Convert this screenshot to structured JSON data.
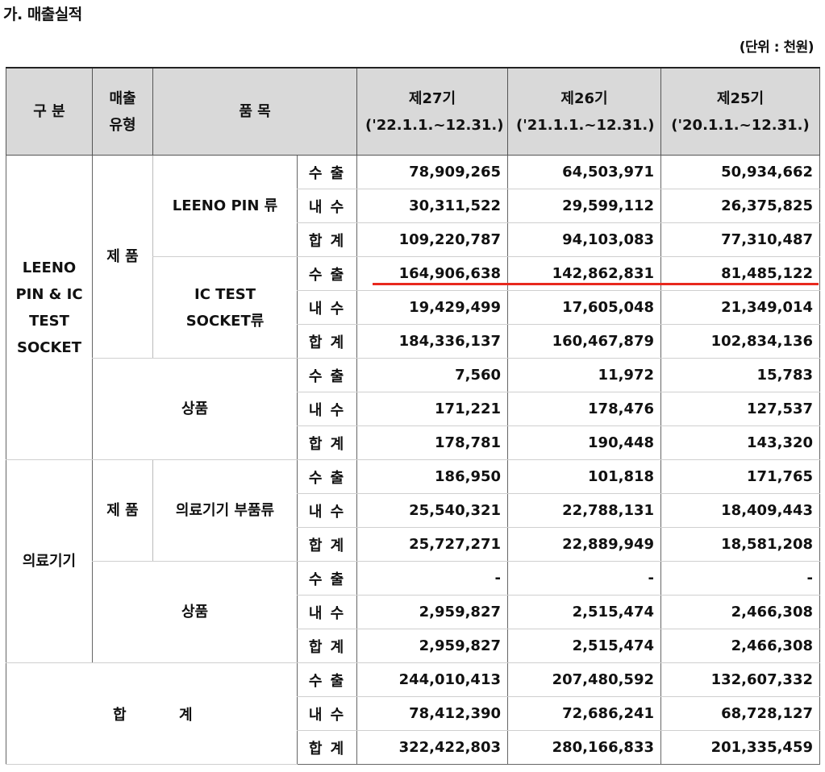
{
  "title": "가. 매출실적",
  "unit": "(단위 : 천원)",
  "headers": {
    "category": "구 분",
    "sales_type": "매출 유형",
    "item": "품 목",
    "fy27": "제27기 ('22.1.1.~12.31.)",
    "fy26": "제26기 ('21.1.1.~12.31.)",
    "fy25": "제25기 ('20.1.1.~12.31.)"
  },
  "groups": {
    "socket": "LEENO PIN & IC TEST SOCKET",
    "medical": "의료기기",
    "total": [
      "합",
      "계"
    ]
  },
  "types": {
    "product": "제 품",
    "goods": "상품"
  },
  "items": {
    "leeno_pin": "LEENO PIN 류",
    "ic_socket": "IC TEST SOCKET류",
    "medical_parts": "의료기기 부품류"
  },
  "sub": {
    "export": "수 출",
    "domestic": "내 수",
    "sum": "합 계"
  },
  "rows": {
    "pin_export": [
      "78,909,265",
      "64,503,971",
      "50,934,662"
    ],
    "pin_domestic": [
      "30,311,522",
      "29,599,112",
      "26,375,825"
    ],
    "pin_sum": [
      "109,220,787",
      "94,103,083",
      "77,310,487"
    ],
    "ic_export": [
      "164,906,638",
      "142,862,831",
      "81,485,122"
    ],
    "ic_domestic": [
      "19,429,499",
      "17,605,048",
      "21,349,014"
    ],
    "ic_sum": [
      "184,336,137",
      "160,467,879",
      "102,834,136"
    ],
    "sg_export": [
      "7,560",
      "11,972",
      "15,783"
    ],
    "sg_domestic": [
      "171,221",
      "178,476",
      "127,537"
    ],
    "sg_sum": [
      "178,781",
      "190,448",
      "143,320"
    ],
    "mp_export": [
      "186,950",
      "101,818",
      "171,765"
    ],
    "mp_domestic": [
      "25,540,321",
      "22,788,131",
      "18,409,443"
    ],
    "mp_sum": [
      "25,727,271",
      "22,889,949",
      "18,581,208"
    ],
    "mg_export": [
      "-",
      "-",
      "-"
    ],
    "mg_domestic": [
      "2,959,827",
      "2,515,474",
      "2,466,308"
    ],
    "mg_sum": [
      "2,959,827",
      "2,515,474",
      "2,466,308"
    ],
    "tot_export": [
      "244,010,413",
      "207,480,592",
      "132,607,332"
    ],
    "tot_domestic": [
      "78,412,390",
      "72,686,241",
      "68,728,127"
    ],
    "tot_sum": [
      "322,422,803",
      "280,166,833",
      "201,335,459"
    ]
  },
  "highlight_color": "#e8281e"
}
